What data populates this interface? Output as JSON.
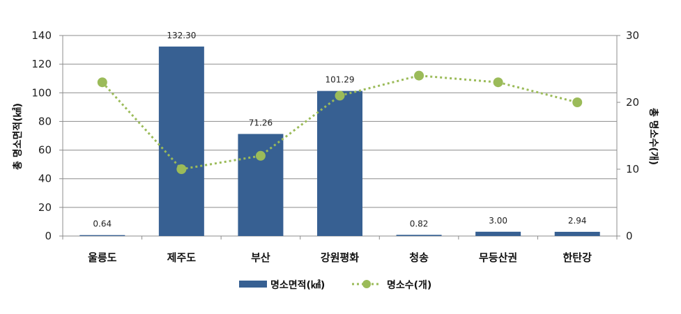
{
  "chart_data": {
    "type": "bar",
    "categories": [
      "울릉도",
      "제주도",
      "부산",
      "강원평화",
      "청송",
      "무등산권",
      "한탄강"
    ],
    "series": [
      {
        "name": "명소면적(㎢)",
        "type": "bar",
        "axis": "left",
        "values": [
          0.64,
          132.3,
          71.26,
          101.29,
          0.82,
          3.0,
          2.94
        ],
        "labels": [
          "0.64",
          "132.30",
          "71.26",
          "101.29",
          "0.82",
          "3.00",
          "2.94"
        ],
        "color": "#376092"
      },
      {
        "name": "명소수(개)",
        "type": "line",
        "style": "dotted",
        "axis": "right",
        "values": [
          23,
          10,
          12,
          21,
          24,
          23,
          20
        ],
        "color": "#9BBB59"
      }
    ],
    "ylabel": "총 명소면적(㎢)",
    "y2label": "총 명소수(개)",
    "ylim": [
      0,
      140
    ],
    "y2lim": [
      0,
      30
    ],
    "yticks": [
      "0",
      "20",
      "40",
      "60",
      "80",
      "100",
      "120",
      "140"
    ],
    "y2ticks": [
      "0",
      "10",
      "20",
      "30"
    ],
    "grid": true,
    "legend": "bottom"
  }
}
